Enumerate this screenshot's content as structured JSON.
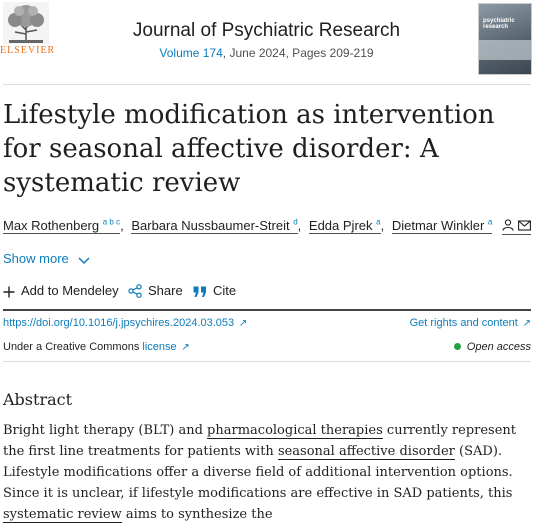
{
  "header": {
    "publisher": "ELSEVIER",
    "journal": "Journal of Psychiatric Research",
    "volume": "Volume 174",
    "issue_rest": ", June 2024, Pages 209-219",
    "cover_text": "psychiatric research"
  },
  "article": {
    "title": "Lifestyle modification as intervention for seasonal affective disorder: A systematic review",
    "authors": [
      {
        "name": "Max Rothenberg",
        "sup": "a b c"
      },
      {
        "name": "Barbara Nussbaumer-Streit",
        "sup": "d"
      },
      {
        "name": "Edda Pjrek",
        "sup": "a"
      },
      {
        "name": "Dietmar Winkler",
        "sup": "a"
      }
    ],
    "show_more": "Show more"
  },
  "toolbar": {
    "add_mendeley": "Add to Mendeley",
    "share": "Share",
    "cite": "Cite"
  },
  "links": {
    "doi": "https://doi.org/10.1016/j.jpsychires.2024.03.053",
    "rights": "Get rights and content",
    "license_prefix": "Under a Creative Commons",
    "license_link": "license",
    "open_access": "Open access"
  },
  "abstract": {
    "heading": "Abstract",
    "p1": "Bright light therapy (BLT) and ",
    "link1": "pharmacological therapies",
    "p2": " currently represent the first line treatments for patients with ",
    "link2": "seasonal affective disorder",
    "p3": " (SAD). Lifestyle modifications offer a diverse field of additional intervention options. Since it is unclear, if lifestyle modifications are effective in SAD patients, this ",
    "link3": "systematic review",
    "p4": " aims to synthesize the"
  },
  "colors": {
    "link": "#0c7dbb",
    "brand": "#e9711c",
    "open_access_dot": "#29a13d"
  },
  "icons": [
    "elsevier-tree-logo",
    "person-icon",
    "envelope-icon",
    "chevron-down-icon",
    "plus-icon",
    "share-icon",
    "quote-icon",
    "external-arrow-icon"
  ]
}
